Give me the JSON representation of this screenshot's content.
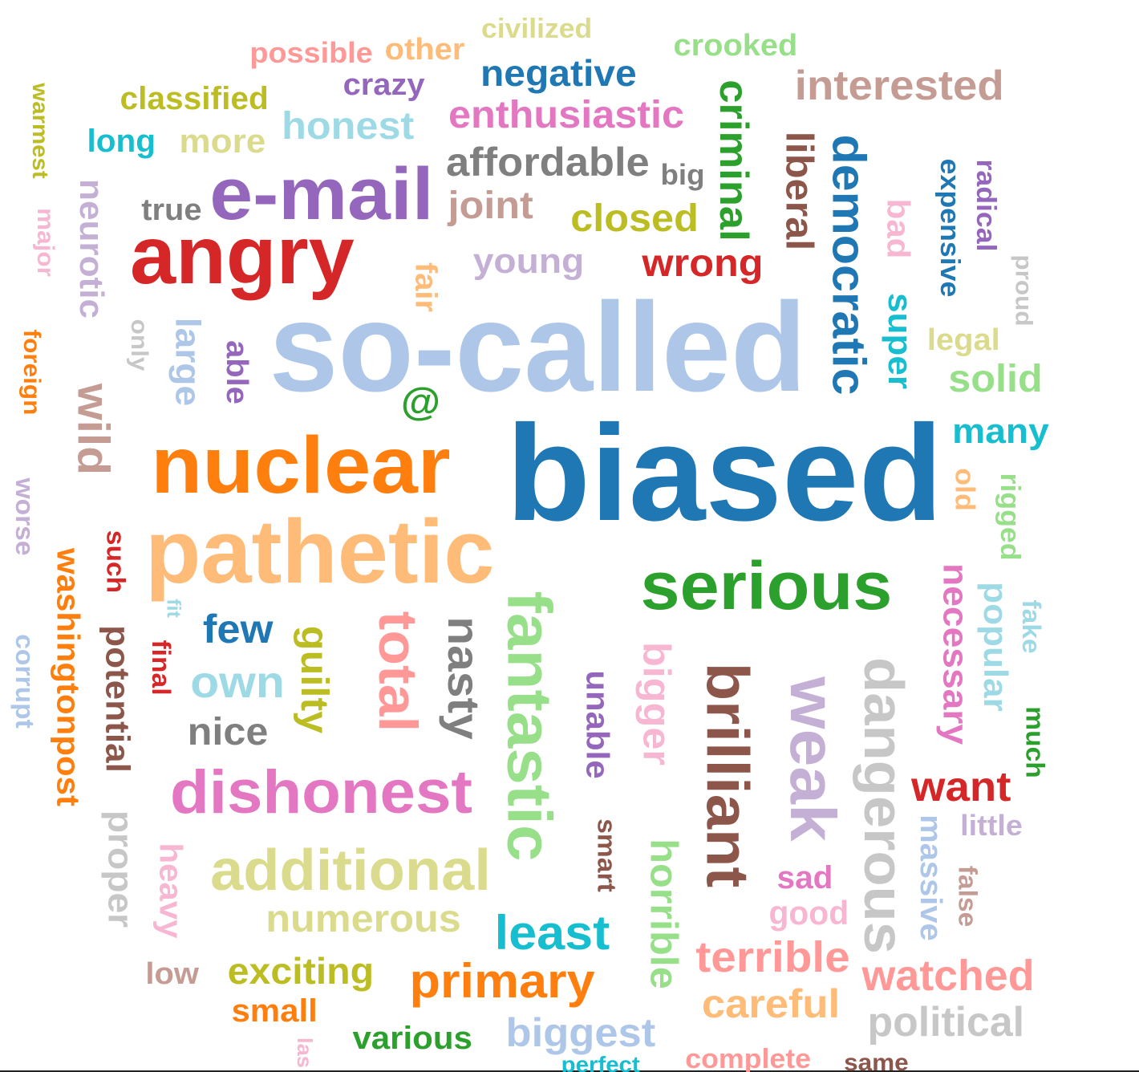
{
  "words": [
    {
      "text": "so-called",
      "color": "#aec7e8"
    },
    {
      "text": "biased",
      "color": "#1f77b4"
    },
    {
      "text": "nuclear",
      "color": "#ff7f0e"
    },
    {
      "text": "pathetic",
      "color": "#ffbb78"
    },
    {
      "text": "angry",
      "color": "#d62728"
    },
    {
      "text": "e-mail",
      "color": "#9467bd"
    },
    {
      "text": "serious",
      "color": "#2ca02c"
    },
    {
      "text": "fantastic",
      "color": "#98df8a"
    },
    {
      "text": "brilliant",
      "color": "#8c564b"
    },
    {
      "text": "weak",
      "color": "#c5b0d5"
    },
    {
      "text": "dangerous",
      "color": "#c7c7c7"
    },
    {
      "text": "total",
      "color": "#ff9896"
    },
    {
      "text": "nasty",
      "color": "#7f7f7f"
    },
    {
      "text": "guilty",
      "color": "#bcbd22"
    },
    {
      "text": "dishonest",
      "color": "#e377c2"
    },
    {
      "text": "additional",
      "color": "#dbdb8d"
    },
    {
      "text": "wild",
      "color": "#c49c94"
    },
    {
      "text": "democratic",
      "color": "#1f77b4"
    },
    {
      "text": "liberal",
      "color": "#8c564b"
    },
    {
      "text": "criminal",
      "color": "#2ca02c"
    },
    {
      "text": "interested",
      "color": "#c49c94"
    },
    {
      "text": "enthusiastic",
      "color": "#e377c2"
    },
    {
      "text": "affordable",
      "color": "#7f7f7f"
    },
    {
      "text": "honest",
      "color": "#9edae5"
    },
    {
      "text": "negative",
      "color": "#1f77b4"
    },
    {
      "text": "crazy",
      "color": "#9467bd"
    },
    {
      "text": "classified",
      "color": "#bcbd22"
    },
    {
      "text": "more",
      "color": "#dbdb8d"
    },
    {
      "text": "long",
      "color": "#17becf"
    },
    {
      "text": "possible",
      "color": "#ff9896"
    },
    {
      "text": "other",
      "color": "#ffbb78"
    },
    {
      "text": "civilized",
      "color": "#dbdb8d"
    },
    {
      "text": "crooked",
      "color": "#98df8a"
    },
    {
      "text": "joint",
      "color": "#c49c94"
    },
    {
      "text": "big",
      "color": "#7f7f7f"
    },
    {
      "text": "closed",
      "color": "#bcbd22"
    },
    {
      "text": "wrong",
      "color": "#d62728"
    },
    {
      "text": "young",
      "color": "#c5b0d5"
    },
    {
      "text": "true",
      "color": "#7f7f7f"
    },
    {
      "text": "fair",
      "color": "#ffbb78"
    },
    {
      "text": "large",
      "color": "#aec7e8"
    },
    {
      "text": "able",
      "color": "#9467bd"
    },
    {
      "text": "only",
      "color": "#c7c7c7"
    },
    {
      "text": "@",
      "color": "#2ca02c"
    },
    {
      "text": "neurotic",
      "color": "#c5b0d5"
    },
    {
      "text": "major",
      "color": "#f7b6d2"
    },
    {
      "text": "warmest",
      "color": "#bcbd22"
    },
    {
      "text": "foreign",
      "color": "#ff7f0e"
    },
    {
      "text": "worse",
      "color": "#c5b0d5"
    },
    {
      "text": "washingtonpost",
      "color": "#ff7f0e"
    },
    {
      "text": "such",
      "color": "#d62728"
    },
    {
      "text": "fit",
      "color": "#9edae5"
    },
    {
      "text": "corrupt",
      "color": "#aec7e8"
    },
    {
      "text": "potential",
      "color": "#8c564b"
    },
    {
      "text": "final",
      "color": "#d62728"
    },
    {
      "text": "few",
      "color": "#1f77b4"
    },
    {
      "text": "own",
      "color": "#9edae5"
    },
    {
      "text": "nice",
      "color": "#7f7f7f"
    },
    {
      "text": "proper",
      "color": "#c7c7c7"
    },
    {
      "text": "heavy",
      "color": "#f7b6d2"
    },
    {
      "text": "low",
      "color": "#c49c94"
    },
    {
      "text": "numerous",
      "color": "#dbdb8d"
    },
    {
      "text": "exciting",
      "color": "#bcbd22"
    },
    {
      "text": "small",
      "color": "#ff7f0e"
    },
    {
      "text": "various",
      "color": "#2ca02c"
    },
    {
      "text": "las",
      "color": "#f7b6d2"
    },
    {
      "text": "least",
      "color": "#17becf"
    },
    {
      "text": "primary",
      "color": "#ff7f0e"
    },
    {
      "text": "biggest",
      "color": "#aec7e8"
    },
    {
      "text": "perfect",
      "color": "#17becf"
    },
    {
      "text": "unable",
      "color": "#9467bd"
    },
    {
      "text": "smart",
      "color": "#8c564b"
    },
    {
      "text": "bigger",
      "color": "#f7b6d2"
    },
    {
      "text": "horrible",
      "color": "#98df8a"
    },
    {
      "text": "terrible",
      "color": "#ff9896"
    },
    {
      "text": "careful",
      "color": "#ffbb78"
    },
    {
      "text": "complete",
      "color": "#ff9896"
    },
    {
      "text": "same",
      "color": "#8c564b"
    },
    {
      "text": "watched",
      "color": "#ff9896"
    },
    {
      "text": "political",
      "color": "#c7c7c7"
    },
    {
      "text": "sad",
      "color": "#e377c2"
    },
    {
      "text": "good",
      "color": "#f7b6d2"
    },
    {
      "text": "want",
      "color": "#d62728"
    },
    {
      "text": "little",
      "color": "#c5b0d5"
    },
    {
      "text": "massive",
      "color": "#aec7e8"
    },
    {
      "text": "false",
      "color": "#c49c94"
    },
    {
      "text": "necessary",
      "color": "#e377c2"
    },
    {
      "text": "popular",
      "color": "#9edae5"
    },
    {
      "text": "fake",
      "color": "#9edae5"
    },
    {
      "text": "much",
      "color": "#2ca02c"
    },
    {
      "text": "rigged",
      "color": "#98df8a"
    },
    {
      "text": "old",
      "color": "#ffbb78"
    },
    {
      "text": "many",
      "color": "#17becf"
    },
    {
      "text": "solid",
      "color": "#98df8a"
    },
    {
      "text": "legal",
      "color": "#dbdb8d"
    },
    {
      "text": "super",
      "color": "#17becf"
    },
    {
      "text": "bad",
      "color": "#f7b6d2"
    },
    {
      "text": "expensive",
      "color": "#1f77b4"
    },
    {
      "text": "radical",
      "color": "#9467bd"
    },
    {
      "text": "proud",
      "color": "#c7c7c7"
    }
  ]
}
